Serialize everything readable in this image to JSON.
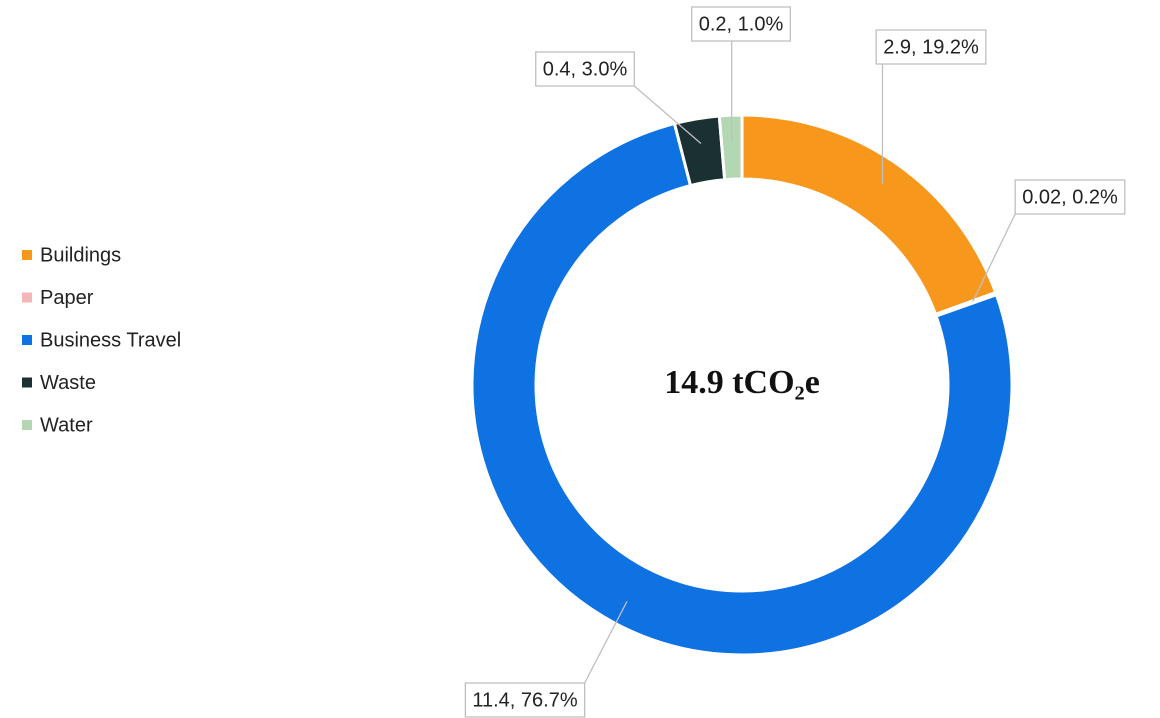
{
  "chart_data": {
    "type": "donut",
    "center_label": "14.9 tCO₂e",
    "categories": [
      "Buildings",
      "Paper",
      "Business Travel",
      "Waste",
      "Water"
    ],
    "values": [
      2.9,
      0.02,
      11.4,
      0.4,
      0.2
    ],
    "value_labels": [
      "2.9, 19.2%",
      "0.02, 0.2%",
      "11.4, 76.7%",
      "0.4, 3.0%",
      "0.2, 1.0%"
    ],
    "colors": [
      "#f7981d",
      "#f4b6b6",
      "#0e72e3",
      "#1b3033",
      "#b3d6b3"
    ],
    "legend": "left"
  }
}
